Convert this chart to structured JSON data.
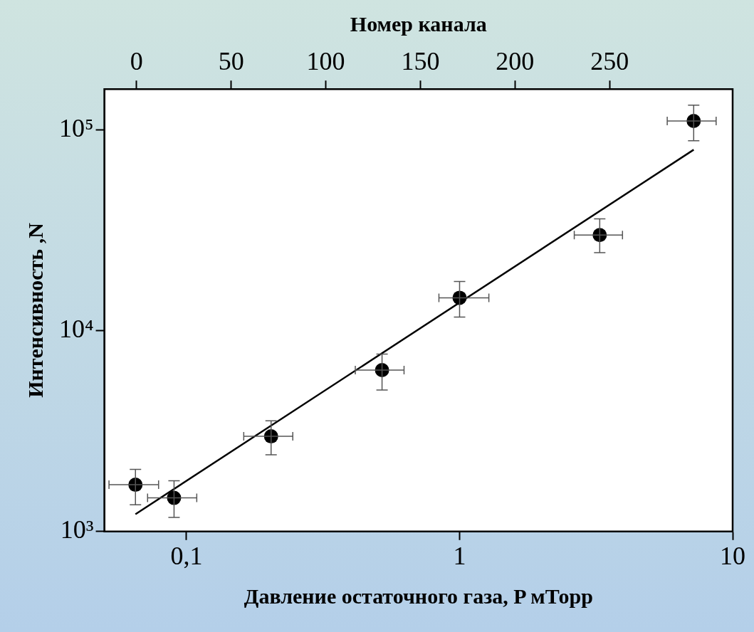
{
  "chart_data": {
    "type": "scatter",
    "x2label": "Номер канала",
    "xlabel": "Давление остаточного газа, P мТорр",
    "ylabel": "Интенсивность ,N",
    "log": "xy",
    "grid": false,
    "legend": false,
    "marker": "circle",
    "xlim": [
      0.05,
      10
    ],
    "xticks": [
      {
        "value": 0.1,
        "label": "0,1"
      },
      1,
      10
    ],
    "ylim": [
      1000,
      160000
    ],
    "yticks": [
      {
        "value": 1000,
        "label": "10³"
      },
      {
        "value": 10000,
        "label": "10⁴"
      },
      {
        "value": 100000,
        "label": "10⁵"
      }
    ],
    "x2lim": [
      -17,
      315
    ],
    "x2ticks": [
      0,
      50,
      100,
      150,
      200,
      250
    ],
    "series": [
      {
        "color": "#000000",
        "x": [
          0.065,
          0.09,
          0.204,
          0.52,
          1.0,
          3.26,
          7.2
        ],
        "values": [
          1710,
          1470,
          2980,
          6370,
          14600,
          30000,
          111000
        ],
        "errors": [
          [
            1360,
            2040
          ],
          [
            1175,
            1790
          ],
          [
            2410,
            3560
          ],
          [
            5070,
            7660
          ],
          [
            11700,
            17600
          ],
          [
            24500,
            36100
          ],
          [
            88500,
            133000
          ]
        ],
        "xerrors": [
          [
            0.052,
            0.079
          ],
          [
            0.072,
            0.109
          ],
          [
            0.162,
            0.245
          ],
          [
            0.415,
            0.626
          ],
          [
            0.84,
            1.28
          ],
          [
            2.63,
            3.95
          ],
          [
            5.76,
            8.7
          ]
        ]
      },
      {
        "type": "line",
        "color": "#000000",
        "x": [
          0.065,
          7.2
        ],
        "values": [
          1220,
          79800
        ],
        "marker": "none",
        "line_style": "solid"
      }
    ]
  }
}
